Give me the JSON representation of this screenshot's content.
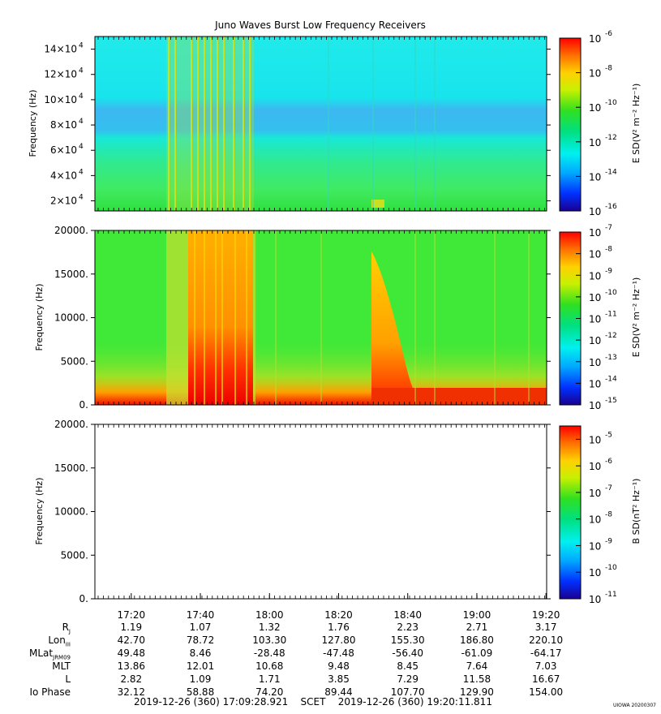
{
  "title": "Juno Waves Burst Low Frequency Receivers",
  "footer": {
    "start": "2019-12-26 (360) 17:09:28.921",
    "scet": "SCET",
    "end": "2019-12-26 (360) 19:20:11.811"
  },
  "stamp": "UIOWA 20200307",
  "time_ticks": [
    "17:20",
    "17:40",
    "18:00",
    "18:20",
    "18:40",
    "19:00",
    "19:20"
  ],
  "ephemeris": [
    {
      "label": "R",
      "sub": "J",
      "values": [
        "1.19",
        "1.07",
        "1.32",
        "1.76",
        "2.23",
        "2.71",
        "3.17"
      ]
    },
    {
      "label": "Lon",
      "sub": "III",
      "values": [
        "42.70",
        "78.72",
        "103.30",
        "127.80",
        "155.30",
        "186.80",
        "220.10"
      ]
    },
    {
      "label": "MLat",
      "sub": "JRM09",
      "values": [
        "49.48",
        "8.46",
        "-28.48",
        "-47.48",
        "-56.40",
        "-61.09",
        "-64.17"
      ]
    },
    {
      "label": "MLT",
      "sub": "",
      "values": [
        "13.86",
        "12.01",
        "10.68",
        "9.48",
        "8.45",
        "7.64",
        "7.03"
      ]
    },
    {
      "label": "L",
      "sub": "",
      "values": [
        "2.82",
        "1.09",
        "1.71",
        "3.85",
        "7.29",
        "11.58",
        "16.67"
      ]
    },
    {
      "label": "Io Phase",
      "sub": "",
      "values": [
        "32.12",
        "58.88",
        "74.20",
        "89.44",
        "107.70",
        "129.90",
        "154.00"
      ]
    }
  ],
  "chart_data": [
    {
      "type": "heatmap",
      "panel": "top",
      "ylabel": "Frequency (Hz)",
      "ylim": [
        12000,
        150000
      ],
      "yticks": [
        20000,
        40000,
        60000,
        80000,
        100000,
        120000,
        140000
      ],
      "ytick_labels": [
        {
          "m": "2",
          "e": "4"
        },
        {
          "m": "4",
          "e": "4"
        },
        {
          "m": "6",
          "e": "4"
        },
        {
          "m": "8",
          "e": "4"
        },
        {
          "m": "10",
          "e": "4"
        },
        {
          "m": "12",
          "e": "4"
        },
        {
          "m": "14",
          "e": "4"
        }
      ],
      "colorbar_label": "E SD(V² m⁻² Hz⁻¹)",
      "colorbar_range_log10": [
        -16,
        -6
      ],
      "colorbar_ticks": [
        -16,
        -14,
        -12,
        -10,
        -8,
        -6
      ],
      "colors": {
        "background": "#18ecec",
        "band": "#3cc0ee",
        "low": "#30ea70",
        "burst": "#c8e21c"
      }
    },
    {
      "type": "heatmap",
      "panel": "middle",
      "ylabel": "Frequency (Hz)",
      "ylim": [
        0,
        20000
      ],
      "yticks": [
        0,
        5000,
        10000,
        15000,
        20000
      ],
      "ytick_labels": [
        "0.",
        "5000.",
        "10000.",
        "15000.",
        "20000."
      ],
      "colorbar_label": "E SD(V² m⁻² Hz⁻¹)",
      "colorbar_range_log10": [
        -15,
        -7
      ],
      "colorbar_ticks": [
        -15,
        -14,
        -13,
        -12,
        -11,
        -10,
        -9,
        -8,
        -7
      ],
      "colors": {
        "background": "#3ce838",
        "intense": "#f40a00",
        "moderate": "#ffb000"
      }
    },
    {
      "type": "heatmap",
      "panel": "bottom",
      "ylabel": "Frequency (Hz)",
      "ylim": [
        0,
        20000
      ],
      "yticks": [
        0,
        5000,
        10000,
        15000,
        20000
      ],
      "ytick_labels": [
        "0.",
        "5000.",
        "10000.",
        "15000.",
        "20000."
      ],
      "colorbar_label": "B SD(nT² Hz⁻¹)",
      "colorbar_range_log10": [
        -11,
        -4.5
      ],
      "colorbar_ticks": [
        -11,
        -10,
        -9,
        -8,
        -7,
        -6,
        -5
      ],
      "colors": {
        "background": "#ffffff"
      }
    }
  ]
}
